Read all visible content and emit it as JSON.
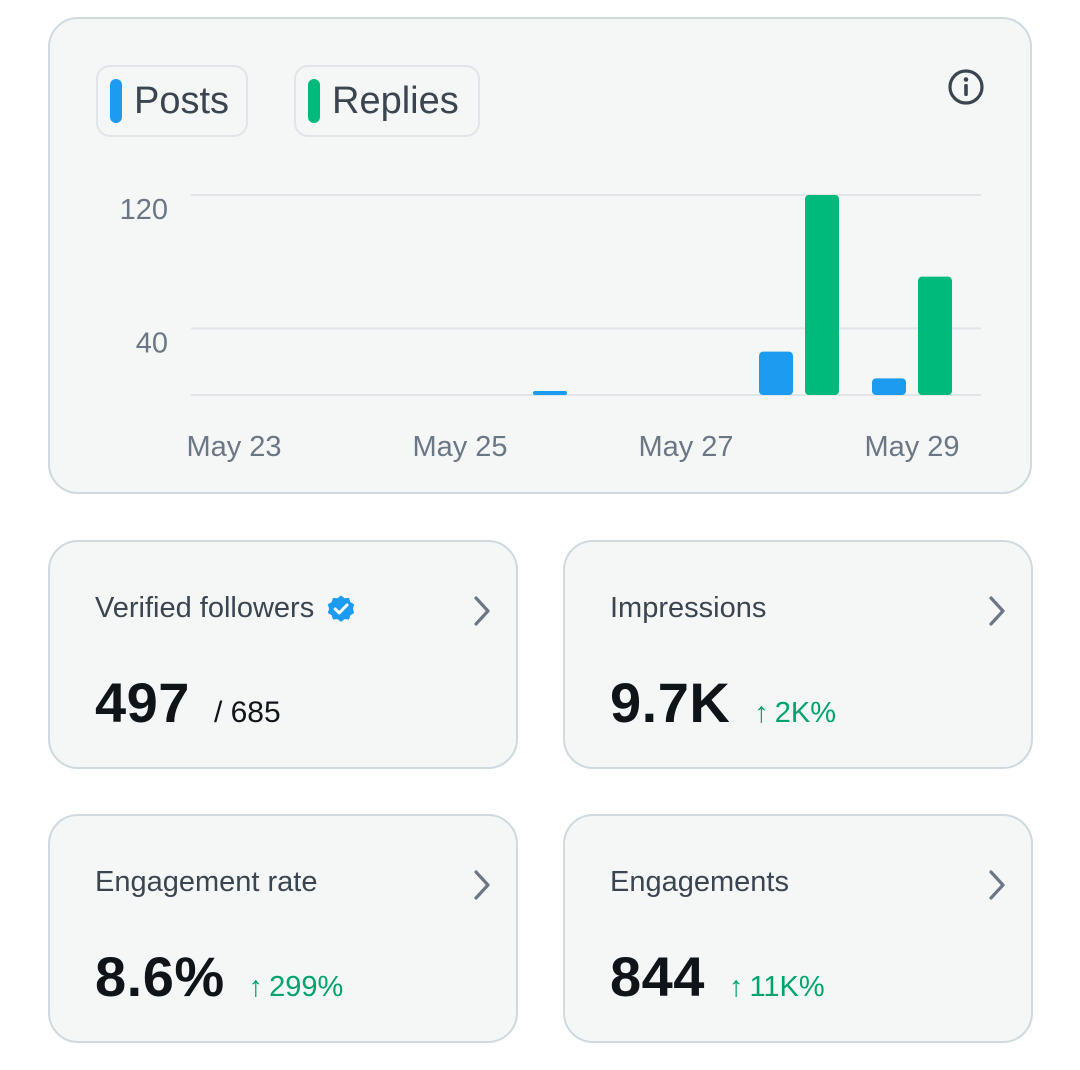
{
  "colors": {
    "posts": "#1d9bf0",
    "replies": "#00ba7c",
    "gridline": "#dfe5e8",
    "positive_change": "#00a36c",
    "verified_badge": "#1d9bf0"
  },
  "legend": {
    "posts_label": "Posts",
    "replies_label": "Replies"
  },
  "icons": {
    "info": "info-icon",
    "chevron": "chevron-right-icon",
    "verified": "verified-badge-icon",
    "arrow": "arrow-up-icon"
  },
  "chart_data": {
    "type": "bar",
    "x_tick_labels": [
      "May 23",
      "May 25",
      "May 27",
      "May 29"
    ],
    "y_tick_labels": [
      "120",
      "40"
    ],
    "y_ticks": [
      120,
      40
    ],
    "ylim": [
      0,
      120
    ],
    "categories": [
      "May 23",
      "May 24",
      "May 25",
      "May 26",
      "May 27",
      "May 28",
      "May 29"
    ],
    "series": [
      {
        "name": "Posts",
        "values": [
          0,
          0,
          0,
          2,
          0,
          26,
          10
        ]
      },
      {
        "name": "Replies",
        "values": [
          0,
          0,
          0,
          0,
          0,
          120,
          71
        ]
      }
    ],
    "grid": true
  },
  "stats": {
    "verified": {
      "title": "Verified followers",
      "value": "497",
      "sub": "/ 685"
    },
    "impressions": {
      "title": "Impressions",
      "value": "9.7K",
      "change": "2K%"
    },
    "engagement_rate": {
      "title": "Engagement rate",
      "value": "8.6%",
      "change": "299%"
    },
    "engagements": {
      "title": "Engagements",
      "value": "844",
      "change": "11K%"
    }
  }
}
